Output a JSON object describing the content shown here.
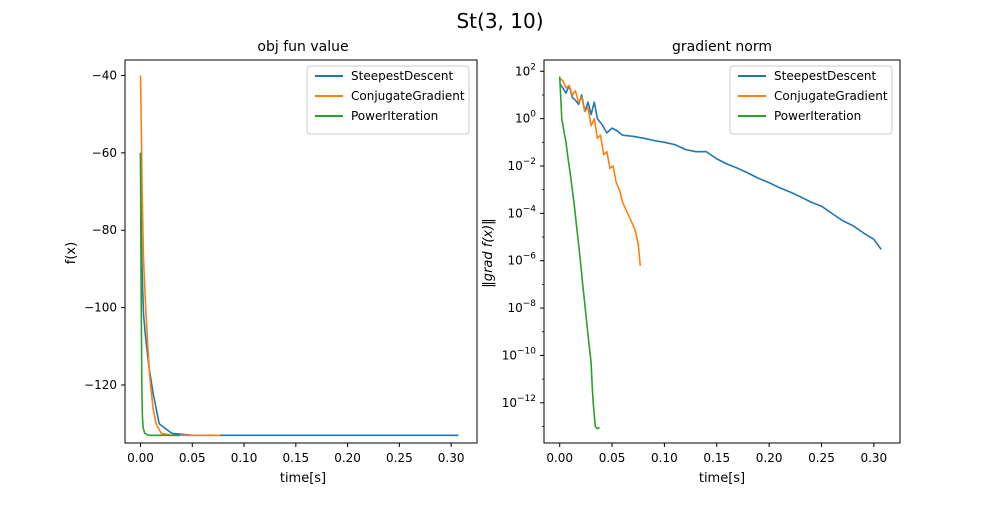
{
  "figure": {
    "title": "St(3, 10)"
  },
  "colors": {
    "SteepestDescent": "#1f77b4",
    "ConjugateGradient": "#ff7f0e",
    "PowerIteration": "#2ca02c"
  },
  "chart_data": [
    {
      "type": "line",
      "title": "obj fun value",
      "xlabel": "time[s]",
      "ylabel": "f(x)",
      "xlim": [
        -0.015,
        0.325
      ],
      "ylim": [
        -135,
        -36
      ],
      "xticks": [
        0.0,
        0.05,
        0.1,
        0.15,
        0.2,
        0.25,
        0.3
      ],
      "xtick_labels": [
        "0.00",
        "0.05",
        "0.10",
        "0.15",
        "0.20",
        "0.25",
        "0.30"
      ],
      "yticks": [
        -40,
        -60,
        -80,
        -100,
        -120
      ],
      "ytick_labels": [
        "−40",
        "−60",
        "−80",
        "−100",
        "−120"
      ],
      "legend_position": "top-right",
      "series": [
        {
          "name": "SteepestDescent",
          "color": "#1f77b4",
          "x": [
            0.0,
            0.001,
            0.002,
            0.003,
            0.005,
            0.008,
            0.012,
            0.018,
            0.03,
            0.05,
            0.1,
            0.2,
            0.307
          ],
          "y": [
            -60,
            -85,
            -95,
            -102,
            -108,
            -115,
            -122,
            -130,
            -132.5,
            -133,
            -133,
            -133,
            -133
          ]
        },
        {
          "name": "ConjugateGradient",
          "color": "#ff7f0e",
          "x": [
            0.0,
            0.0008,
            0.0015,
            0.003,
            0.005,
            0.007,
            0.009,
            0.012,
            0.015,
            0.02,
            0.03,
            0.05,
            0.077
          ],
          "y": [
            -40,
            -55,
            -70,
            -88,
            -100,
            -110,
            -118,
            -126,
            -130,
            -132.5,
            -133,
            -133,
            -133
          ]
        },
        {
          "name": "PowerIteration",
          "color": "#2ca02c",
          "x": [
            0.0,
            0.0004,
            0.0008,
            0.0012,
            0.0018,
            0.0025,
            0.004,
            0.008,
            0.02,
            0.035,
            0.038
          ],
          "y": [
            -60,
            -85,
            -105,
            -120,
            -128,
            -131,
            -132.5,
            -133,
            -133,
            -133,
            -133
          ]
        }
      ]
    },
    {
      "type": "line",
      "title": "gradient norm",
      "xlabel": "time[s]",
      "ylabel": "‖grad f(x)‖",
      "yscale": "log",
      "xlim": [
        -0.015,
        0.325
      ],
      "ylim": [
        2e-14,
        300
      ],
      "xticks": [
        0.0,
        0.05,
        0.1,
        0.15,
        0.2,
        0.25,
        0.3
      ],
      "xtick_labels": [
        "0.00",
        "0.05",
        "0.10",
        "0.15",
        "0.20",
        "0.25",
        "0.30"
      ],
      "yticks": [
        100,
        1,
        0.01,
        0.0001,
        1e-06,
        1e-08,
        1e-10,
        1e-12
      ],
      "ytick_labels": [
        {
          "base": "10",
          "exp": "2"
        },
        {
          "base": "10",
          "exp": "0"
        },
        {
          "base": "10",
          "exp": "−2"
        },
        {
          "base": "10",
          "exp": "−4"
        },
        {
          "base": "10",
          "exp": "−6"
        },
        {
          "base": "10",
          "exp": "−8"
        },
        {
          "base": "10",
          "exp": "−10"
        },
        {
          "base": "10",
          "exp": "−12"
        }
      ],
      "legend_position": "top-right",
      "series": [
        {
          "name": "SteepestDescent",
          "color": "#1f77b4",
          "x": [
            0.0,
            0.003,
            0.006,
            0.009,
            0.012,
            0.015,
            0.018,
            0.021,
            0.024,
            0.027,
            0.03,
            0.033,
            0.036,
            0.04,
            0.045,
            0.05,
            0.055,
            0.06,
            0.07,
            0.08,
            0.09,
            0.1,
            0.11,
            0.12,
            0.13,
            0.14,
            0.15,
            0.16,
            0.17,
            0.18,
            0.19,
            0.2,
            0.21,
            0.22,
            0.23,
            0.24,
            0.25,
            0.26,
            0.27,
            0.28,
            0.29,
            0.3,
            0.307
          ],
          "y": [
            30,
            20,
            12,
            25,
            8,
            6,
            4,
            10,
            2,
            5,
            1.5,
            5,
            1,
            0.6,
            0.25,
            0.4,
            0.3,
            0.2,
            0.18,
            0.15,
            0.12,
            0.1,
            0.08,
            0.05,
            0.04,
            0.04,
            0.02,
            0.012,
            0.008,
            0.005,
            0.003,
            0.002,
            0.0012,
            0.0008,
            0.0005,
            0.0003,
            0.0002,
            0.0001,
            5e-05,
            3e-05,
            1.5e-05,
            8e-06,
            3e-06
          ]
        },
        {
          "name": "ConjugateGradient",
          "color": "#ff7f0e",
          "x": [
            0.0,
            0.003,
            0.006,
            0.009,
            0.012,
            0.015,
            0.018,
            0.021,
            0.024,
            0.027,
            0.03,
            0.033,
            0.036,
            0.039,
            0.042,
            0.045,
            0.048,
            0.051,
            0.054,
            0.057,
            0.06,
            0.063,
            0.066,
            0.069,
            0.072,
            0.075,
            0.077
          ],
          "y": [
            50,
            40,
            20,
            25,
            10,
            15,
            5,
            8,
            2,
            3,
            0.5,
            1,
            0.15,
            0.2,
            0.03,
            0.04,
            0.008,
            0.01,
            0.002,
            0.001,
            0.0003,
            0.00015,
            8e-05,
            4e-05,
            2e-05,
            5e-06,
            6e-07
          ]
        },
        {
          "name": "PowerIteration",
          "color": "#2ca02c",
          "x": [
            0.0,
            0.002,
            0.004,
            0.006,
            0.008,
            0.01,
            0.012,
            0.014,
            0.016,
            0.018,
            0.02,
            0.022,
            0.024,
            0.026,
            0.028,
            0.03,
            0.031,
            0.032,
            0.034,
            0.036,
            0.038
          ],
          "y": [
            60,
            1,
            0.3,
            0.1,
            0.02,
            0.005,
            0.001,
            0.0002,
            3e-05,
            5e-06,
            8e-07,
            1e-07,
            1.5e-08,
            2e-09,
            3e-10,
            5e-11,
            5e-12,
            1e-12,
            1e-13,
            8e-14,
            9e-14
          ]
        }
      ]
    }
  ]
}
